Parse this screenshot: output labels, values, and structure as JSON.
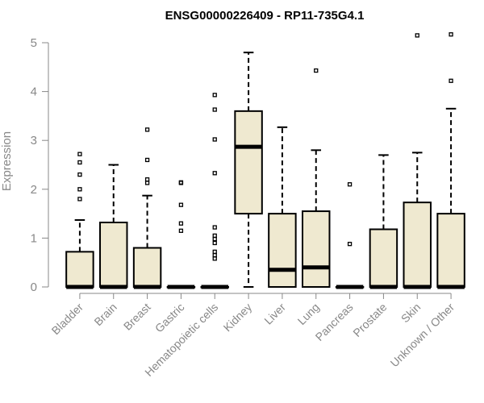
{
  "chart_data": {
    "type": "boxplot",
    "title": "ENSG00000226409 - RP11-735G4.1",
    "ylabel": "Expression",
    "xlabel": "",
    "ylim": [
      0,
      5.2
    ],
    "yticks": [
      0,
      1,
      2,
      3,
      4,
      5
    ],
    "grid": false,
    "legend": "none",
    "box_color": "#efe9d0",
    "categories": [
      "Bladder",
      "Brain",
      "Breast",
      "Gastric",
      "Hematopoietic cells",
      "Kidney",
      "Liver",
      "Lung",
      "Pancreas",
      "Prostate",
      "Skin",
      "Unknown / Other"
    ],
    "boxes": [
      {
        "category": "Bladder",
        "q1": 0,
        "median": 0,
        "q3": 0.72,
        "whisker_low": 0,
        "whisker_high": 1.37,
        "outliers": [
          1.8,
          2.0,
          2.3,
          2.55,
          2.72
        ]
      },
      {
        "category": "Brain",
        "q1": 0,
        "median": 0,
        "q3": 1.32,
        "whisker_low": 0,
        "whisker_high": 2.5,
        "outliers": []
      },
      {
        "category": "Breast",
        "q1": 0,
        "median": 0,
        "q3": 0.8,
        "whisker_low": 0,
        "whisker_high": 1.87,
        "outliers": [
          2.13,
          2.2,
          2.6,
          3.22
        ]
      },
      {
        "category": "Gastric",
        "q1": 0,
        "median": 0,
        "q3": 0,
        "whisker_low": 0,
        "whisker_high": 0,
        "outliers": [
          1.15,
          1.3,
          1.68,
          2.13,
          2.14
        ]
      },
      {
        "category": "Hematopoietic cells",
        "q1": 0,
        "median": 0,
        "q3": 0,
        "whisker_low": 0,
        "whisker_high": 0,
        "outliers": [
          0.58,
          0.65,
          0.72,
          0.9,
          0.98,
          1.05,
          1.22,
          2.33,
          3.02,
          3.63,
          3.93
        ]
      },
      {
        "category": "Kidney",
        "q1": 1.5,
        "median": 2.87,
        "q3": 3.6,
        "whisker_low": 0,
        "whisker_high": 4.8,
        "outliers": []
      },
      {
        "category": "Liver",
        "q1": 0,
        "median": 0.35,
        "q3": 1.5,
        "whisker_low": 0,
        "whisker_high": 3.27,
        "outliers": []
      },
      {
        "category": "Lung",
        "q1": 0,
        "median": 0.4,
        "q3": 1.55,
        "whisker_low": 0,
        "whisker_high": 2.8,
        "outliers": [
          4.43
        ]
      },
      {
        "category": "Pancreas",
        "q1": 0,
        "median": 0,
        "q3": 0,
        "whisker_low": 0,
        "whisker_high": 0,
        "outliers": [
          0.88,
          2.1
        ]
      },
      {
        "category": "Prostate",
        "q1": 0,
        "median": 0,
        "q3": 1.18,
        "whisker_low": 0,
        "whisker_high": 2.7,
        "outliers": []
      },
      {
        "category": "Skin",
        "q1": 0,
        "median": 0,
        "q3": 1.73,
        "whisker_low": 0,
        "whisker_high": 2.75,
        "outliers": [
          5.15
        ]
      },
      {
        "category": "Unknown / Other",
        "q1": 0,
        "median": 0,
        "q3": 1.5,
        "whisker_low": 0,
        "whisker_high": 3.65,
        "outliers": [
          4.22,
          5.17
        ]
      }
    ]
  }
}
